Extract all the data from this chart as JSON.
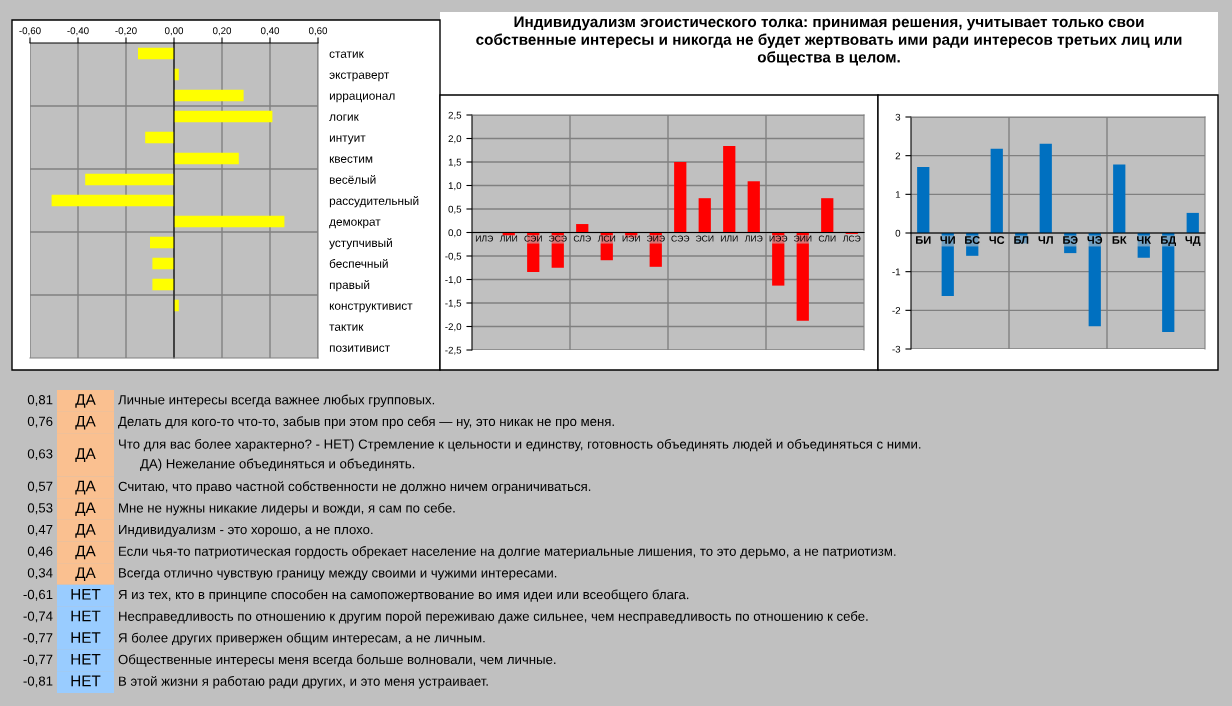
{
  "chart_data": [
    {
      "type": "bar",
      "orientation": "horizontal",
      "categories": [
        "статик",
        "экстраверт",
        "иррационал",
        "логик",
        "интуит",
        "квестим",
        "весёлый",
        "рассудительный",
        "демократ",
        "уступчивый",
        "беспечный",
        "правый",
        "конструктивист",
        "тактик",
        "позитивист"
      ],
      "series": [
        {
          "color": "#ffff00",
          "values": [
            -0.15,
            0.02,
            0.29,
            0.41,
            -0.12,
            0.27,
            -0.37,
            -0.51,
            0.46,
            -0.1,
            -0.09,
            -0.09,
            0.02,
            0,
            0
          ]
        }
      ],
      "xlim": [
        -0.6,
        0.6
      ],
      "xticks": [
        {
          "value": -0.6,
          "label": "-0,60"
        },
        {
          "value": -0.4,
          "label": "-0,40"
        },
        {
          "value": -0.2,
          "label": "-0,20"
        },
        {
          "value": 0,
          "label": "0,00"
        },
        {
          "value": 0.2,
          "label": "0,20"
        },
        {
          "value": 0.4,
          "label": "0,40"
        },
        {
          "value": 0.6,
          "label": "0,60"
        }
      ],
      "grid": true
    },
    {
      "type": "bar",
      "title": "Индивидуализм эгоистического толка: принимая решения, учитывает только свои собственные интересы и никогда не будет жертвовать ими ради интересов третьих лиц или общества в целом.",
      "categories": [
        "ИЛЭ",
        "ЛИИ",
        "СЭИ",
        "ЭСЭ",
        "СЛЭ",
        "ЛСИ",
        "ИЭИ",
        "ЭИЭ",
        "СЭЭ",
        "ЭСИ",
        "ИЛИ",
        "ЛИЭ",
        "ИЭЭ",
        "ЭИИ",
        "СЛИ",
        "ЛСЭ"
      ],
      "series": [
        {
          "color": "#ff0000",
          "values": [
            0,
            -0.07,
            -0.84,
            -0.75,
            0.18,
            -0.59,
            -0.11,
            -0.73,
            1.5,
            0.73,
            1.84,
            1.09,
            -1.13,
            -1.88,
            0.73,
            -0.03
          ]
        }
      ],
      "ylim": [
        -2.5,
        2.5
      ],
      "yticks": [
        {
          "value": -2.5,
          "label": "-2,5"
        },
        {
          "value": -2,
          "label": "-2,0"
        },
        {
          "value": -1.5,
          "label": "-1,5"
        },
        {
          "value": -1,
          "label": "-1,0"
        },
        {
          "value": -0.5,
          "label": "-0,5"
        },
        {
          "value": 0,
          "label": "0,0"
        },
        {
          "value": 0.5,
          "label": "0,5"
        },
        {
          "value": 1,
          "label": "1,0"
        },
        {
          "value": 1.5,
          "label": "1,5"
        },
        {
          "value": 2,
          "label": "2,0"
        },
        {
          "value": 2.5,
          "label": "2,5"
        }
      ],
      "grid": true
    },
    {
      "type": "bar",
      "categories": [
        "БИ",
        "ЧИ",
        "БС",
        "ЧС",
        "БЛ",
        "ЧЛ",
        "БЭ",
        "ЧЭ",
        "БК",
        "ЧК",
        "БД",
        "ЧД"
      ],
      "series": [
        {
          "color": "#0070c0",
          "values": [
            1.71,
            -1.63,
            -0.59,
            2.18,
            -0.27,
            2.31,
            -0.52,
            -2.41,
            1.77,
            -0.64,
            -2.56,
            0.52
          ]
        }
      ],
      "ylim": [
        -3,
        3
      ],
      "yticks": [
        -3,
        -2,
        -1,
        0,
        1,
        2,
        3
      ],
      "grid": true
    },
    {
      "type": "other",
      "categories": [
        "Личные интересы всегда важнее любых групповых.",
        "Делать для кого-то что-то, забыв при этом про себя — ну, это никак не про меня.",
        "Что для вас более характерно? - НЕТ) Стремление к цельности и единству, готовность объединять людей и объединяться с ними.\n      ДА) Нежелание объединяться и объединять.",
        "Считаю, что право частной собственности не должно ничем ограничиваться.",
        "Мне не нужны никакие лидеры и вожди, я сам по себе.",
        "Индивидуализм - это хорошо, а не плохо.",
        "Если чья-то патриотическая гордость обрекает население на долгие материальные лишения, то это дерьмо, а не патриотизм.",
        "Всегда отлично чувствую границу между своими и чужими интересами.",
        "Я из тех, кто в принципе способен на самопожертвование во имя идеи или всеобщего блага.",
        "Несправедливость по отношению к другим порой переживаю даже сильнее, чем несправедливость по отношению к себе.",
        "Я более других привержен общим интересам, а не личным.",
        "Общественные интересы меня всегда больше волновали, чем личные.",
        "В этой жизни я работаю ради других, и это меня устраивает."
      ],
      "y_categories": [
        "0,81",
        "0,76",
        "0,63",
        "0,57",
        "0,53",
        "0,47",
        "0,46",
        "0,34",
        "-0,61",
        "-0,74",
        "-0,77",
        "-0,77",
        "-0,81"
      ],
      "y2_categories": [
        "ДА",
        "ДА",
        "ДА",
        "ДА",
        "ДА",
        "ДА",
        "ДА",
        "ДА",
        "НЕТ",
        "НЕТ",
        "НЕТ",
        "НЕТ",
        "НЕТ"
      ],
      "colors": [
        "#fac090",
        "#fac090",
        "#fac090",
        "#fac090",
        "#fac090",
        "#fac090",
        "#fac090",
        "#fac090",
        "#99ccff",
        "#99ccff",
        "#99ccff",
        "#99ccff",
        "#99ccff"
      ]
    }
  ]
}
